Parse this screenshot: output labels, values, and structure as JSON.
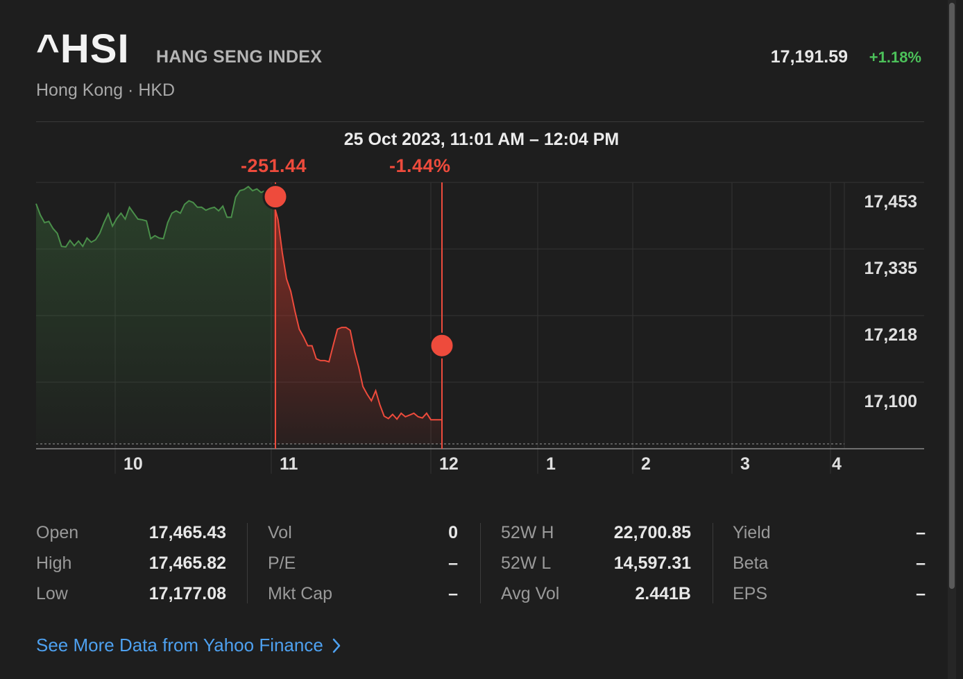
{
  "header": {
    "symbol": "^HSI",
    "name": "HANG SENG INDEX",
    "exchange": "Hong Kong · HKD",
    "price": "17,191.59",
    "change": "+1.18%"
  },
  "selection": {
    "range_label": "25 Oct 2023, 11:01 AM – 12:04 PM",
    "point_change": "-251.44",
    "percent_change": "-1.44%"
  },
  "chart_data": {
    "type": "line",
    "ylim": [
      17040,
      17490
    ],
    "y_ticks": [
      "17,453",
      "17,335",
      "17,218",
      "17,100"
    ],
    "x_tick_labels": [
      "10",
      "11",
      "12",
      "1",
      "2",
      "3",
      "4"
    ],
    "colors": {
      "up": "#4a8f4a",
      "down": "#ee4b3c",
      "grid": "#333333"
    },
    "series": [
      {
        "values": [
          17454,
          17435,
          17422,
          17424,
          17412,
          17404,
          17382,
          17381,
          17392,
          17383,
          17391,
          17382,
          17396,
          17389,
          17393,
          17404,
          17422,
          17437,
          17416,
          17429,
          17438,
          17428,
          17448,
          17438,
          17428,
          17427,
          17425,
          17395,
          17400,
          17396,
          17395,
          17422,
          17438,
          17442,
          17438,
          17453,
          17459,
          17456,
          17448,
          17448,
          17443,
          17446,
          17448,
          17442,
          17450,
          17431,
          17431,
          17465,
          17476,
          17478,
          17483,
          17476,
          17479,
          17473,
          17476,
          17465,
          17454,
          17427,
          17371,
          17327,
          17306,
          17272,
          17242,
          17229,
          17214,
          17214,
          17192,
          17189,
          17189,
          17187,
          17215,
          17242,
          17245,
          17245,
          17240,
          17205,
          17178,
          17145,
          17132,
          17121,
          17138,
          17114,
          17095,
          17091,
          17098,
          17090,
          17100,
          17094,
          17097,
          17100,
          17094,
          17092,
          17100,
          17089
        ]
      }
    ],
    "selection_start": 17465.82,
    "selection_end": 17214.38
  },
  "stats": {
    "columns": [
      [
        {
          "label": "Open",
          "value": "17,465.43"
        },
        {
          "label": "High",
          "value": "17,465.82"
        },
        {
          "label": "Low",
          "value": "17,177.08"
        }
      ],
      [
        {
          "label": "Vol",
          "value": "0"
        },
        {
          "label": "P/E",
          "value": "–"
        },
        {
          "label": "Mkt Cap",
          "value": "–"
        }
      ],
      [
        {
          "label": "52W H",
          "value": "22,700.85"
        },
        {
          "label": "52W L",
          "value": "14,597.31"
        },
        {
          "label": "Avg Vol",
          "value": "2.441B"
        }
      ],
      [
        {
          "label": "Yield",
          "value": "–"
        },
        {
          "label": "Beta",
          "value": "–"
        },
        {
          "label": "EPS",
          "value": "–"
        }
      ]
    ]
  },
  "footer": {
    "more_link": "See More Data from Yahoo Finance"
  }
}
